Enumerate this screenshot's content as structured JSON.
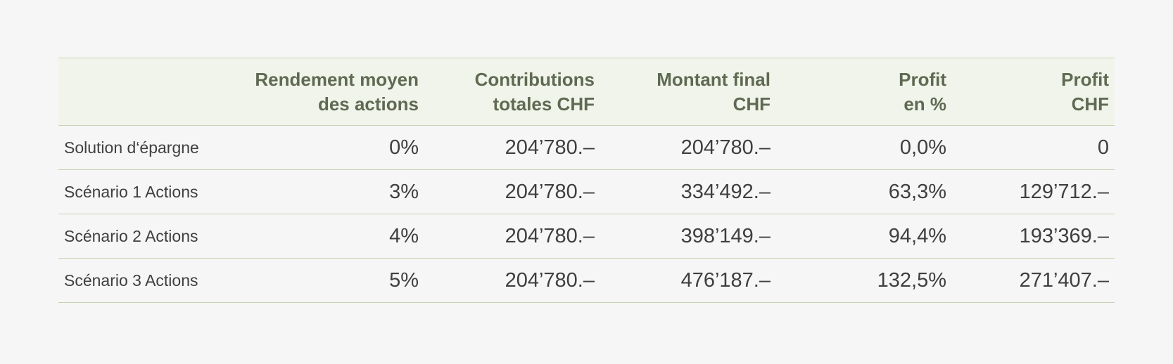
{
  "table": {
    "headers": [
      {
        "line1": "",
        "line2": ""
      },
      {
        "line1": "Rendement moyen",
        "line2": "des actions"
      },
      {
        "line1": "Contributions",
        "line2": "totales CHF"
      },
      {
        "line1": "Montant final",
        "line2": "CHF"
      },
      {
        "line1": "Profit",
        "line2": "en %"
      },
      {
        "line1": "Profit",
        "line2": "CHF"
      }
    ],
    "rows": [
      [
        "Solution d‘épargne",
        "0%",
        "204’780.–",
        "204’780.–",
        "0,0%",
        "0"
      ],
      [
        "Scénario 1 Actions",
        "3%",
        "204’780.–",
        "334’492.–",
        "63,3%",
        "129’712.–"
      ],
      [
        "Scénario 2 Actions",
        "4%",
        "204’780.–",
        "398’149.–",
        "94,4%",
        "193’369.–"
      ],
      [
        "Scénario 3 Actions",
        "5%",
        "204’780.–",
        "476’187.–",
        "132,5%",
        "271’407.–"
      ]
    ]
  }
}
